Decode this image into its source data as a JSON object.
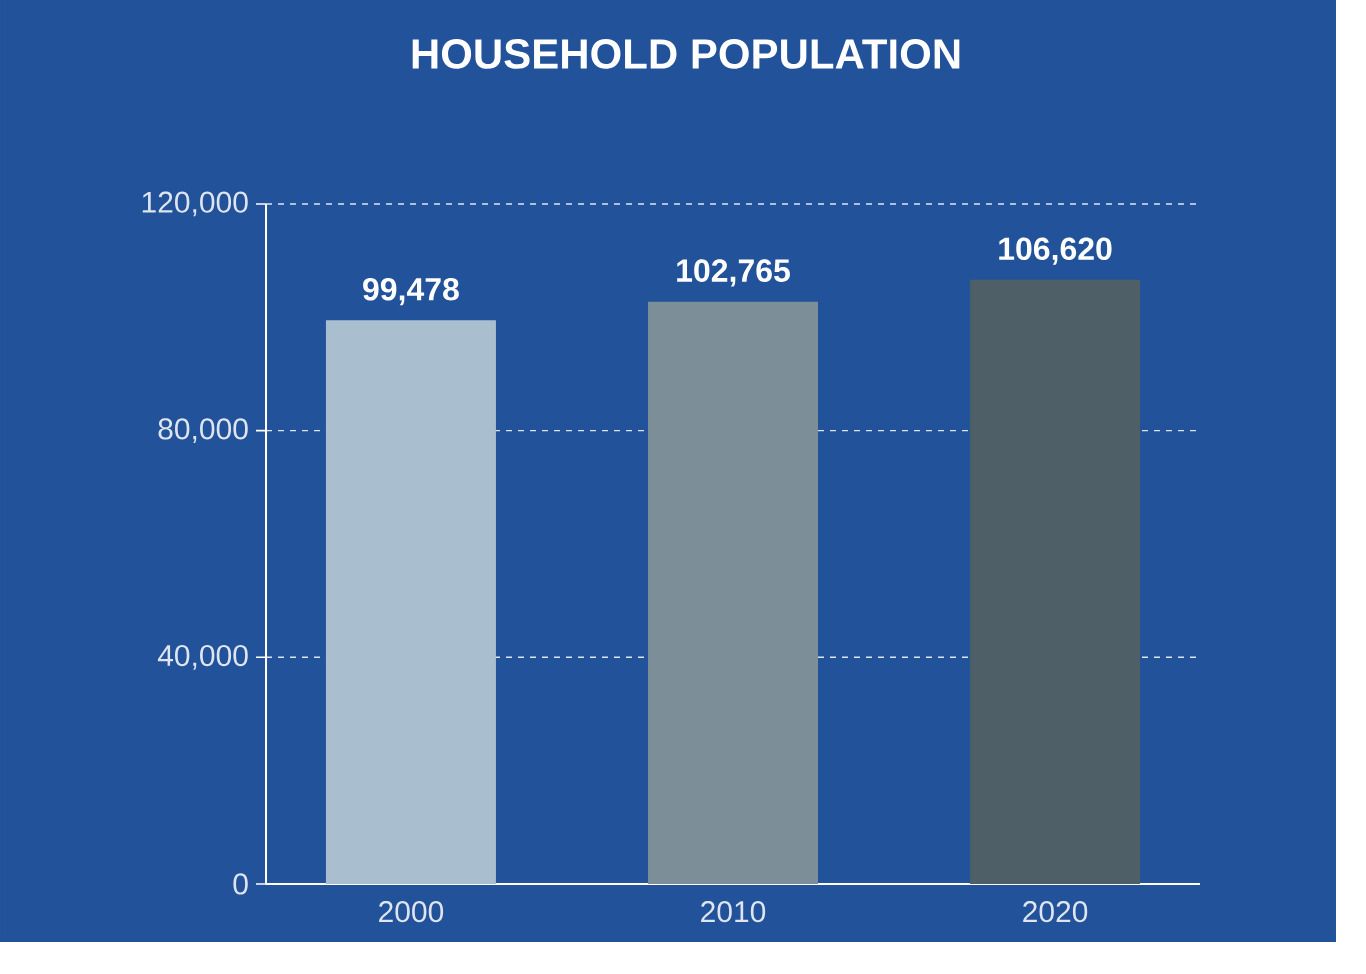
{
  "chart_data": {
    "type": "bar",
    "title": "HOUSEHOLD POPULATION",
    "categories": [
      "2000",
      "2010",
      "2020"
    ],
    "values": [
      99478,
      102765,
      106620
    ],
    "colors": [
      "#a9bfcf",
      "#7c8f98",
      "#4e5f68"
    ],
    "ylim": [
      0,
      120000
    ],
    "yticks": [
      {
        "value": 0,
        "label": "0"
      },
      {
        "value": 40000,
        "label": "40,000"
      },
      {
        "value": 80000,
        "label": "80,000"
      },
      {
        "value": 120000,
        "label": "120,000"
      }
    ],
    "value_labels": [
      "99,478",
      "102,765",
      "106,620"
    ],
    "grid": "y"
  }
}
